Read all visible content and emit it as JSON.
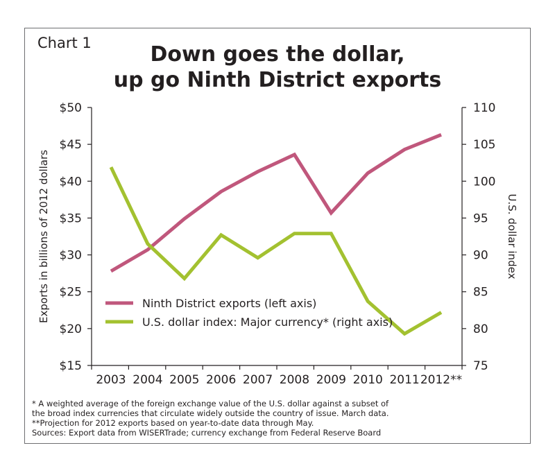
{
  "chart_label": "Chart 1",
  "title_lines": [
    "Down goes the dollar,",
    "up go Ninth District exports"
  ],
  "notes": [
    "* A weighted average of the foreign exchange value of the U.S. dollar against a subset of",
    "the broad index currencies that circulate widely outside the country of issue. March data.",
    "**Projection for 2012 exports based on year-to-date data through May.",
    "Sources: Export data from WISERTrade; currency exchange from Federal Reserve Board"
  ],
  "colors": {
    "exports": "#c0577c",
    "dollar": "#a3c130",
    "axis": "#231f20"
  },
  "chart_data": {
    "type": "line",
    "title": "Down goes the dollar, up go Ninth District exports",
    "x": [
      "2003",
      "2004",
      "2005",
      "2006",
      "2007",
      "2008",
      "2009",
      "2010",
      "2011",
      "2012**"
    ],
    "ylabel": "Exports in billions of 2012 dollars",
    "y2label": "U.S. dollar index",
    "ylim": [
      15,
      50
    ],
    "y2lim": [
      75,
      110
    ],
    "yticks": [
      "$15",
      "$20",
      "$25",
      "$30",
      "$35",
      "$40",
      "$45",
      "$50"
    ],
    "y2ticks": [
      "75",
      "80",
      "85",
      "90",
      "95",
      "100",
      "105",
      "110"
    ],
    "legend_position": "lower-left",
    "series": [
      {
        "name": "Ninth District exports (left axis)",
        "axis": "left",
        "values": [
          27.8,
          30.7,
          34.9,
          38.6,
          41.3,
          43.6,
          35.7,
          41.1,
          44.3,
          46.3
        ]
      },
      {
        "name": "U.S. dollar index: Major currency* (right axis)",
        "axis": "right",
        "values": [
          101.9,
          91.5,
          86.8,
          92.7,
          89.6,
          92.9,
          92.9,
          83.7,
          79.3,
          82.2
        ]
      }
    ]
  }
}
